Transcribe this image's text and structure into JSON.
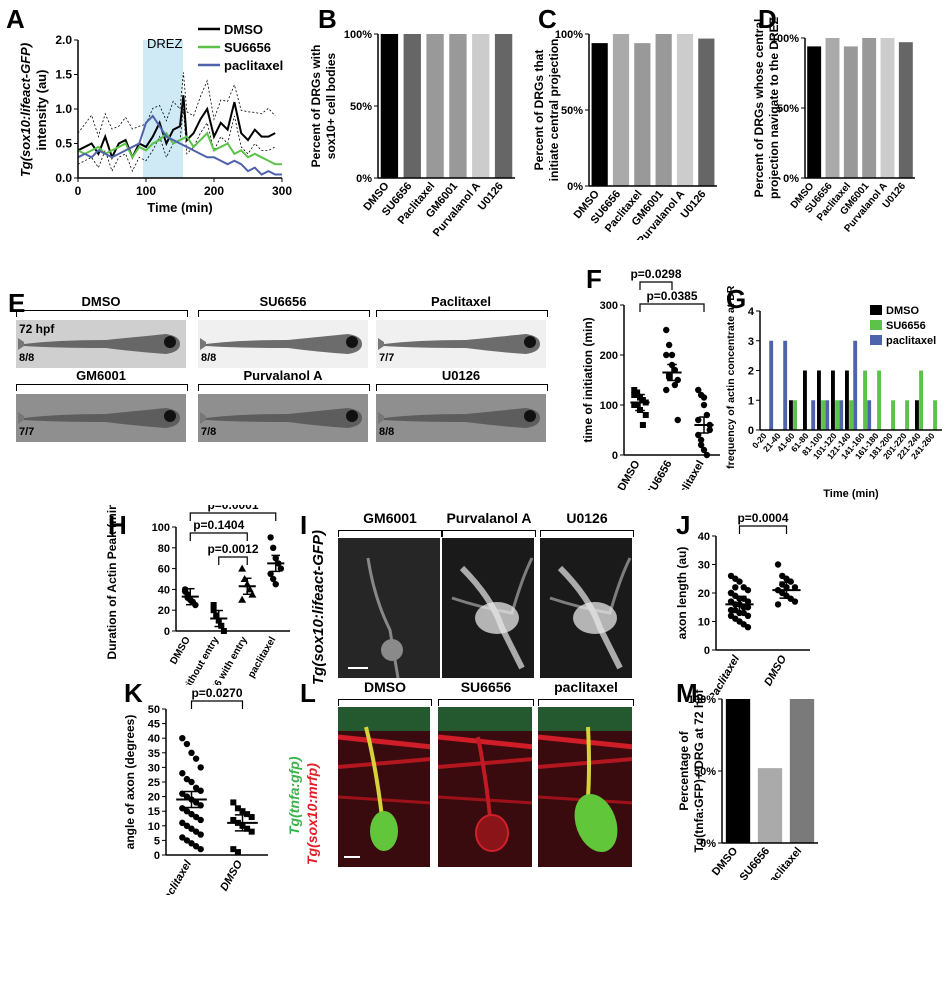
{
  "panel_letters": {
    "a": "A",
    "b": "B",
    "c": "C",
    "d": "D",
    "e": "E",
    "f": "F",
    "g": "G",
    "h": "H",
    "i": "I",
    "j": "J",
    "k": "K",
    "l": "L",
    "m": "M"
  },
  "panel_a": {
    "ylabel_line1": "Tg(sox10:lifeact-GFP)",
    "ylabel_line2": "intensity (au)",
    "xlabel": "Time (min)",
    "annotation": "DREZ",
    "legend": [
      "DMSO",
      "SU6656",
      "paclitaxel"
    ]
  },
  "panel_e": {
    "stage": "72 hpf",
    "fish": [
      {
        "label": "DMSO",
        "count": "8/8"
      },
      {
        "label": "SU6656",
        "count": "8/8"
      },
      {
        "label": "Paclitaxel",
        "count": "7/7"
      },
      {
        "label": "GM6001",
        "count": "7/7"
      },
      {
        "label": "Purvalanol A",
        "count": "7/8"
      },
      {
        "label": "U0126",
        "count": "8/8"
      }
    ]
  },
  "panel_i": {
    "ylabel": "Tg(sox10:lifeact-GFP)",
    "titles": [
      "GM6001",
      "Purvalanol A",
      "U0126"
    ]
  },
  "panel_l": {
    "ylabel_green": "Tg(tnfa:gfp)",
    "ylabel_red": "Tg(sox10:mrfp)",
    "titles": [
      "DMSO",
      "SU6656",
      "paclitaxel"
    ]
  },
  "colors": {
    "dmso": "#000000",
    "su6656": "#5cc24a",
    "paclitaxel": "#4f63ad",
    "drez": "#cfeaf5"
  },
  "chart_data": [
    {
      "id": "A",
      "type": "line",
      "xlabel": "Time (min)",
      "ylabel": "Tg(sox10:lifeact-GFP) intensity (au)",
      "xlim": [
        0,
        300
      ],
      "ylim": [
        0,
        2.0
      ],
      "xticks": [
        0,
        100,
        200,
        300
      ],
      "yticks": [
        0.0,
        0.5,
        1.0,
        1.5,
        2.0
      ],
      "ytick_labels": [
        "0.0",
        "0.5",
        "1.0",
        "1.5",
        "2.0"
      ],
      "shaded_region": [
        100,
        160
      ],
      "series": [
        {
          "name": "DMSO",
          "x": [
            0,
            10,
            20,
            30,
            40,
            50,
            60,
            70,
            80,
            90,
            100,
            110,
            120,
            130,
            140,
            150,
            155,
            160,
            170,
            180,
            190,
            200,
            210,
            220,
            230,
            240,
            250,
            260,
            270,
            280,
            290
          ],
          "y": [
            0.4,
            0.45,
            0.5,
            0.35,
            0.6,
            0.3,
            0.5,
            0.55,
            0.3,
            0.5,
            0.45,
            0.6,
            0.8,
            0.5,
            0.7,
            0.75,
            1.2,
            0.55,
            0.65,
            0.85,
            1.0,
            0.6,
            0.8,
            0.7,
            1.1,
            0.65,
            0.55,
            0.7,
            0.6,
            0.6,
            0.65
          ]
        },
        {
          "name": "SU6656",
          "x": [
            0,
            10,
            20,
            30,
            40,
            50,
            60,
            70,
            80,
            90,
            100,
            110,
            120,
            130,
            140,
            150,
            160,
            170,
            180,
            190,
            200,
            210,
            220,
            230,
            240,
            250,
            260,
            270,
            280,
            290,
            300
          ],
          "y": [
            0.4,
            0.35,
            0.4,
            0.45,
            0.35,
            0.4,
            0.45,
            0.5,
            0.3,
            0.45,
            0.4,
            0.5,
            0.55,
            0.65,
            0.5,
            0.55,
            0.6,
            0.45,
            0.55,
            0.65,
            0.4,
            0.45,
            0.5,
            0.35,
            0.4,
            0.3,
            0.35,
            0.3,
            0.25,
            0.2,
            0.2
          ]
        },
        {
          "name": "paclitaxel",
          "x": [
            0,
            10,
            20,
            30,
            40,
            50,
            60,
            70,
            80,
            90,
            100,
            110,
            120,
            130,
            140,
            150,
            160,
            170,
            180,
            190,
            200,
            210,
            220,
            230,
            240,
            250,
            260,
            270,
            280,
            290,
            300
          ],
          "y": [
            0.3,
            0.35,
            0.3,
            0.4,
            0.35,
            0.3,
            0.35,
            0.4,
            0.45,
            0.5,
            0.8,
            0.9,
            0.75,
            0.6,
            0.55,
            0.5,
            0.45,
            0.4,
            0.35,
            0.3,
            0.3,
            0.25,
            0.2,
            0.25,
            0.2,
            0.1,
            0.15,
            0.05,
            0.1,
            0.05,
            0.05
          ]
        }
      ]
    },
    {
      "id": "B",
      "type": "bar",
      "ylabel": "Percent of DRGs with sox10+ cell bodies",
      "categories": [
        "DMSO",
        "SU6656",
        "Paclitaxel",
        "GM6001",
        "Purvalanol A",
        "U0126"
      ],
      "values": [
        100,
        100,
        100,
        100,
        100,
        100
      ],
      "colors": [
        "#000000",
        "#666666",
        "#999999",
        "#999999",
        "#cccccc",
        "#666666"
      ],
      "ylim": [
        0,
        100
      ],
      "yticks": [
        "0%",
        "50%",
        "100%"
      ]
    },
    {
      "id": "C",
      "type": "bar",
      "ylabel": "Percent of DRGs that initiate central projection",
      "categories": [
        "DMSO",
        "SU6656",
        "Paclitaxel",
        "GM6001",
        "Purvalanol A",
        "U0126"
      ],
      "values": [
        94,
        100,
        94,
        100,
        100,
        97
      ],
      "colors": [
        "#000000",
        "#aaaaaa",
        "#999999",
        "#999999",
        "#cccccc",
        "#666666"
      ],
      "ylim": [
        0,
        100
      ],
      "yticks": [
        "0%",
        "50%",
        "100%"
      ]
    },
    {
      "id": "D",
      "type": "bar",
      "ylabel": "Percent of DRGs whose central projection navigate to the DREZ",
      "categories": [
        "DMSO",
        "SU6656",
        "Paclitaxel",
        "GM6001",
        "Purvalanol A",
        "U0126"
      ],
      "values": [
        94,
        100,
        94,
        100,
        100,
        97
      ],
      "colors": [
        "#000000",
        "#aaaaaa",
        "#999999",
        "#999999",
        "#cccccc",
        "#666666"
      ],
      "ylim": [
        0,
        100
      ],
      "yticks": [
        "0%",
        "50%",
        "100%"
      ]
    },
    {
      "id": "F",
      "type": "scatter",
      "ylabel": "time of initiation (min)",
      "categories": [
        "DMSO",
        "SU6656",
        "paclitaxel"
      ],
      "ylim": [
        0,
        300
      ],
      "yticks": [
        0,
        100,
        200,
        300
      ],
      "comparisons": [
        {
          "label": "p=0.0298",
          "from": 0,
          "to": 1
        },
        {
          "label": "p=0.0385",
          "from": 0,
          "to": 2
        }
      ],
      "means": [
        105,
        165,
        60
      ],
      "points": [
        [
          130,
          100,
          115,
          60,
          80,
          100,
          125,
          90,
          110,
          105,
          120
        ],
        [
          250,
          220,
          200,
          170,
          150,
          130,
          160,
          180,
          140,
          70,
          200,
          155
        ],
        [
          130,
          120,
          100,
          80,
          60,
          40,
          20,
          10,
          0,
          50,
          70,
          30,
          115
        ]
      ]
    },
    {
      "id": "G",
      "type": "bar",
      "xlabel": "Time (min)",
      "ylabel": "frequency of actin concentrate at DREZ",
      "categories": [
        "0-20",
        "21-40",
        "41-60",
        "61-80",
        "81-100",
        "101-120",
        "121-140",
        "141-160",
        "161-180",
        "181-200",
        "201-220",
        "221-240",
        "241-260"
      ],
      "ylim": [
        0,
        4
      ],
      "yticks": [
        0,
        1,
        2,
        3,
        4
      ],
      "series": [
        {
          "name": "DMSO",
          "values": [
            0,
            0,
            1,
            2,
            2,
            2,
            2,
            0,
            0,
            0,
            0,
            1,
            0
          ]
        },
        {
          "name": "SU6656",
          "values": [
            0,
            0,
            1,
            0,
            1,
            1,
            1,
            2,
            2,
            1,
            1,
            2,
            1
          ]
        },
        {
          "name": "paclitaxel",
          "values": [
            3,
            3,
            0,
            1,
            1,
            1,
            3,
            1,
            0,
            0,
            0,
            0,
            0
          ]
        }
      ]
    },
    {
      "id": "H",
      "type": "scatter",
      "ylabel": "Duration of Actin Peak (min)",
      "categories": [
        "DMSO",
        "su6656 without entry",
        "su6656 with entry",
        "paclitaxel"
      ],
      "ylim": [
        0,
        100
      ],
      "yticks": [
        0,
        20,
        40,
        60,
        80,
        100
      ],
      "comparisons": [
        {
          "label": "p=0.0001",
          "from": 0,
          "to": 3
        },
        {
          "label": "p=0.1404",
          "from": 0,
          "to": 2
        },
        {
          "label": "p=0.0012",
          "from": 1,
          "to": 2
        }
      ],
      "means": [
        33,
        12,
        43,
        65
      ],
      "points": [
        [
          40,
          35,
          30,
          28,
          25,
          38,
          32
        ],
        [
          20,
          15,
          10,
          5,
          0,
          25
        ],
        [
          60,
          50,
          45,
          40,
          35,
          30
        ],
        [
          90,
          80,
          70,
          65,
          60,
          55,
          50,
          45
        ]
      ]
    },
    {
      "id": "J",
      "type": "scatter",
      "ylabel": "axon length (au)",
      "categories": [
        "Paclitaxel",
        "DMSO"
      ],
      "ylim": [
        0,
        40
      ],
      "yticks": [
        0,
        10,
        20,
        30,
        40
      ],
      "comparisons": [
        {
          "label": "p=0.0004",
          "from": 0,
          "to": 1
        }
      ],
      "means": [
        16,
        21
      ],
      "points": [
        [
          26,
          25,
          24,
          22,
          21,
          20,
          19,
          18,
          18,
          17,
          17,
          16,
          16,
          15,
          15,
          14,
          14,
          13,
          13,
          12,
          12,
          11,
          10,
          9,
          8,
          20,
          22
        ],
        [
          30,
          26,
          25,
          24,
          22,
          21,
          20,
          19,
          18,
          17,
          16,
          23,
          22
        ]
      ]
    },
    {
      "id": "K",
      "type": "scatter",
      "ylabel": "angle of axon (degrees)",
      "categories": [
        "Paclitaxel",
        "DMSO"
      ],
      "ylim": [
        0,
        50
      ],
      "yticks": [
        0,
        5,
        10,
        15,
        20,
        25,
        30,
        35,
        40,
        45,
        50
      ],
      "comparisons": [
        {
          "label": "p=0.0270",
          "from": 0,
          "to": 1
        }
      ],
      "means": [
        19,
        11
      ],
      "points": [
        [
          40,
          38,
          35,
          33,
          30,
          28,
          26,
          25,
          23,
          22,
          21,
          20,
          19,
          18,
          17,
          16,
          15,
          14,
          13,
          12,
          11,
          10,
          9,
          8,
          7,
          6,
          5,
          4,
          3,
          2
        ],
        [
          18,
          16,
          15,
          14,
          13,
          12,
          11,
          10,
          9,
          8,
          2,
          1
        ]
      ]
    },
    {
      "id": "M",
      "type": "bar",
      "ylabel": "Percentage of Tg(tnfa:GFP)+ DRG at 72 hpf",
      "categories": [
        "DMSO",
        "SU6656",
        "paclitaxel"
      ],
      "values": [
        100,
        52,
        100
      ],
      "colors": [
        "#000000",
        "#aaaaaa",
        "#7a7a7a"
      ],
      "ylim": [
        0,
        100
      ],
      "yticks": [
        "0%",
        "50%",
        "100%"
      ]
    }
  ]
}
